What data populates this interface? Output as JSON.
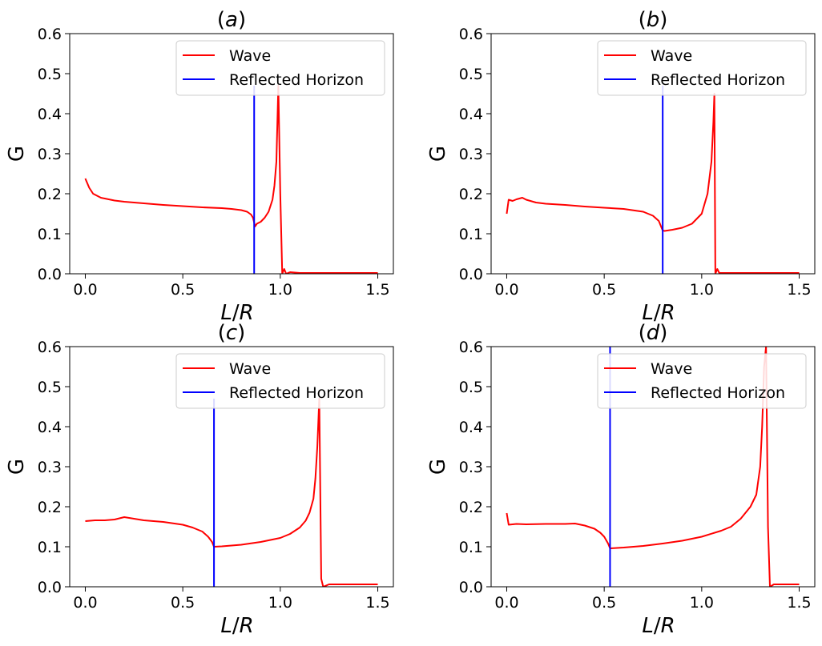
{
  "figure": {
    "legend_location": "top-right"
  },
  "colors": {
    "wave": "#ff0000",
    "horizon": "#0000ff",
    "axes": "#000000",
    "legend_border": "#cccccc"
  },
  "chart_data": [
    {
      "type": "line",
      "title": "(a)",
      "title_letter": "a",
      "xlabel_italic": "L",
      "xlabel_slash": "/",
      "xlabel_italic2": "R",
      "ylabel": "G",
      "xlim": [
        -0.08,
        1.58
      ],
      "ylim": [
        0.0,
        0.6
      ],
      "xticks": [
        0.0,
        0.5,
        1.0,
        1.5
      ],
      "xtick_labels": [
        "0.0",
        "0.5",
        "1.0",
        "1.5"
      ],
      "yticks": [
        0.0,
        0.1,
        0.2,
        0.3,
        0.4,
        0.5,
        0.6
      ],
      "ytick_labels": [
        "0.0",
        "0.1",
        "0.2",
        "0.3",
        "0.4",
        "0.5",
        "0.6"
      ],
      "legend": [
        "Wave",
        "Reflected Horizon"
      ],
      "horizon_x": 0.866,
      "horizon_ymax": 0.47,
      "series": [
        {
          "name": "Wave",
          "x": [
            0.0,
            0.02,
            0.04,
            0.06,
            0.08,
            0.1,
            0.15,
            0.2,
            0.3,
            0.4,
            0.5,
            0.6,
            0.7,
            0.75,
            0.8,
            0.83,
            0.85,
            0.86,
            0.866,
            0.87,
            0.88,
            0.9,
            0.92,
            0.94,
            0.96,
            0.97,
            0.98,
            0.99,
            1.0,
            1.01,
            1.02,
            1.03,
            1.05,
            1.1,
            1.2,
            1.3,
            1.4,
            1.5
          ],
          "y": [
            0.238,
            0.215,
            0.2,
            0.195,
            0.19,
            0.188,
            0.183,
            0.18,
            0.176,
            0.172,
            0.169,
            0.166,
            0.164,
            0.162,
            0.159,
            0.155,
            0.148,
            0.14,
            0.128,
            0.118,
            0.125,
            0.13,
            0.14,
            0.155,
            0.185,
            0.22,
            0.28,
            0.47,
            0.2,
            0.0,
            0.012,
            0.0,
            0.004,
            0.002,
            0.002,
            0.002,
            0.002,
            0.002
          ]
        }
      ]
    },
    {
      "type": "line",
      "title": "(b)",
      "title_letter": "b",
      "xlabel_italic": "L",
      "xlabel_slash": "/",
      "xlabel_italic2": "R",
      "ylabel": "G",
      "xlim": [
        -0.08,
        1.58
      ],
      "ylim": [
        0.0,
        0.6
      ],
      "xticks": [
        0.0,
        0.5,
        1.0,
        1.5
      ],
      "xtick_labels": [
        "0.0",
        "0.5",
        "1.0",
        "1.5"
      ],
      "yticks": [
        0.0,
        0.1,
        0.2,
        0.3,
        0.4,
        0.5,
        0.6
      ],
      "ytick_labels": [
        "0.0",
        "0.1",
        "0.2",
        "0.3",
        "0.4",
        "0.5",
        "0.6"
      ],
      "legend": [
        "Wave",
        "Reflected Horizon"
      ],
      "horizon_x": 0.8,
      "horizon_ymax": 0.47,
      "series": [
        {
          "name": "Wave",
          "x": [
            0.0,
            0.01,
            0.03,
            0.05,
            0.08,
            0.1,
            0.15,
            0.2,
            0.3,
            0.4,
            0.5,
            0.6,
            0.7,
            0.75,
            0.78,
            0.79,
            0.8,
            0.81,
            0.85,
            0.9,
            0.95,
            1.0,
            1.03,
            1.05,
            1.06,
            1.065,
            1.07,
            1.08,
            1.09,
            1.1,
            1.2,
            1.3,
            1.4,
            1.5
          ],
          "y": [
            0.15,
            0.185,
            0.182,
            0.186,
            0.19,
            0.185,
            0.178,
            0.175,
            0.172,
            0.168,
            0.165,
            0.162,
            0.155,
            0.145,
            0.132,
            0.12,
            0.108,
            0.107,
            0.11,
            0.115,
            0.125,
            0.15,
            0.2,
            0.28,
            0.38,
            0.45,
            0.0,
            0.012,
            0.002,
            0.002,
            0.002,
            0.002,
            0.002,
            0.002
          ]
        }
      ]
    },
    {
      "type": "line",
      "title": "(c)",
      "title_letter": "c",
      "xlabel_italic": "L",
      "xlabel_slash": "/",
      "xlabel_italic2": "R",
      "ylabel": "G",
      "xlim": [
        -0.08,
        1.58
      ],
      "ylim": [
        0.0,
        0.6
      ],
      "xticks": [
        0.0,
        0.5,
        1.0,
        1.5
      ],
      "xtick_labels": [
        "0.0",
        "0.5",
        "1.0",
        "1.5"
      ],
      "yticks": [
        0.0,
        0.1,
        0.2,
        0.3,
        0.4,
        0.5,
        0.6
      ],
      "ytick_labels": [
        "0.0",
        "0.1",
        "0.2",
        "0.3",
        "0.4",
        "0.5",
        "0.6"
      ],
      "legend": [
        "Wave",
        "Reflected Horizon"
      ],
      "horizon_x": 0.66,
      "horizon_ymax": 0.47,
      "series": [
        {
          "name": "Wave",
          "x": [
            0.0,
            0.05,
            0.1,
            0.15,
            0.2,
            0.25,
            0.3,
            0.4,
            0.5,
            0.55,
            0.6,
            0.63,
            0.65,
            0.66,
            0.7,
            0.8,
            0.9,
            1.0,
            1.05,
            1.1,
            1.13,
            1.15,
            1.17,
            1.18,
            1.19,
            1.2,
            1.21,
            1.22,
            1.25,
            1.3,
            1.35,
            1.4,
            1.45,
            1.5
          ],
          "y": [
            0.164,
            0.166,
            0.166,
            0.168,
            0.174,
            0.17,
            0.166,
            0.162,
            0.155,
            0.148,
            0.138,
            0.125,
            0.112,
            0.1,
            0.101,
            0.105,
            0.112,
            0.122,
            0.132,
            0.148,
            0.165,
            0.185,
            0.22,
            0.27,
            0.35,
            0.47,
            0.02,
            0.0,
            0.006,
            0.006,
            0.006,
            0.006,
            0.006,
            0.006
          ]
        }
      ]
    },
    {
      "type": "line",
      "title": "(d)",
      "title_letter": "d",
      "xlabel_italic": "L",
      "xlabel_slash": "/",
      "xlabel_italic2": "R",
      "ylabel": "G",
      "xlim": [
        -0.08,
        1.58
      ],
      "ylim": [
        0.0,
        0.6
      ],
      "xticks": [
        0.0,
        0.5,
        1.0,
        1.5
      ],
      "xtick_labels": [
        "0.0",
        "0.5",
        "1.0",
        "1.5"
      ],
      "yticks": [
        0.0,
        0.1,
        0.2,
        0.3,
        0.4,
        0.5,
        0.6
      ],
      "ytick_labels": [
        "0.0",
        "0.1",
        "0.2",
        "0.3",
        "0.4",
        "0.5",
        "0.6"
      ],
      "legend": [
        "Wave",
        "Reflected Horizon"
      ],
      "horizon_x": 0.53,
      "horizon_ymax": 0.6,
      "series": [
        {
          "name": "Wave",
          "x": [
            0.0,
            0.01,
            0.05,
            0.1,
            0.2,
            0.3,
            0.35,
            0.4,
            0.45,
            0.48,
            0.5,
            0.52,
            0.53,
            0.6,
            0.7,
            0.8,
            0.9,
            1.0,
            1.1,
            1.15,
            1.2,
            1.25,
            1.28,
            1.3,
            1.31,
            1.32,
            1.33,
            1.34,
            1.35,
            1.37,
            1.4,
            1.45,
            1.5
          ],
          "y": [
            0.184,
            0.155,
            0.157,
            0.156,
            0.157,
            0.157,
            0.158,
            0.153,
            0.145,
            0.135,
            0.125,
            0.108,
            0.096,
            0.098,
            0.102,
            0.108,
            0.115,
            0.125,
            0.14,
            0.15,
            0.17,
            0.2,
            0.23,
            0.3,
            0.4,
            0.55,
            0.6,
            0.15,
            0.0,
            0.006,
            0.006,
            0.006,
            0.006
          ]
        }
      ]
    }
  ]
}
